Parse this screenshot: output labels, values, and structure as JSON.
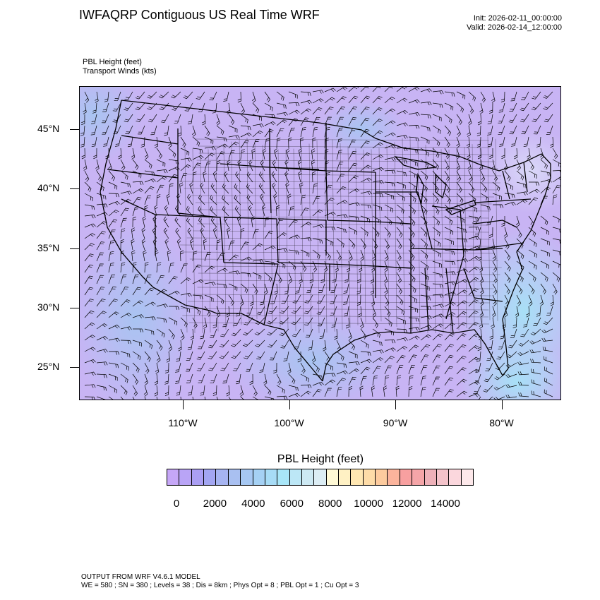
{
  "header": {
    "title": "IWFAQRP Contiguous US Real Time WRF",
    "init": "Init: 2026-02-11_00:00:00",
    "valid": "Valid: 2026-02-14_12:00:00"
  },
  "fields": {
    "primary": "PBL Height   (feet)",
    "secondary": "Transport Winds   (kts)"
  },
  "map": {
    "lat_labels": [
      "45°N",
      "40°N",
      "35°N",
      "30°N",
      "25°N"
    ],
    "lon_labels": [
      "110°W",
      "100°W",
      "90°W",
      "80°W"
    ],
    "lat_values": [
      45,
      40,
      35,
      30,
      25
    ],
    "lon_values": [
      -110,
      -100,
      -90,
      -80
    ],
    "background_color": "#c8b4f4",
    "boundary_color": "#000000"
  },
  "colorbar": {
    "title": "PBL Height  (feet)",
    "labels": [
      "0",
      "2000",
      "4000",
      "6000",
      "8000",
      "10000",
      "12000",
      "14000"
    ],
    "label_values": [
      0,
      2000,
      4000,
      6000,
      8000,
      10000,
      12000,
      14000
    ],
    "colors": [
      "#c6a7f7",
      "#b9a4f6",
      "#ab9ff4",
      "#a3a6f2",
      "#a6b4f1",
      "#a9c0f1",
      "#a6c8f3",
      "#a5d1f4",
      "#a7dcf6",
      "#a8e6f8",
      "#bce7f6",
      "#cde9f3",
      "#dcedf4",
      "#fff9d5",
      "#fff1c4",
      "#ffe7b2",
      "#fedca8",
      "#fdcb9e",
      "#fbb49c",
      "#f8a0a0",
      "#f5a5a8",
      "#eeb1b9",
      "#f4c3ca",
      "#fbd7dd",
      "#fde8ea"
    ]
  },
  "footer": {
    "line1": "OUTPUT FROM WRF V4.6.1 MODEL",
    "line2": "WE = 580 ; SN = 380 ; Levels = 38 ; Dis = 8km ; Phys Opt = 8 ; PBL Opt = 1 ; Cu Opt = 3"
  }
}
